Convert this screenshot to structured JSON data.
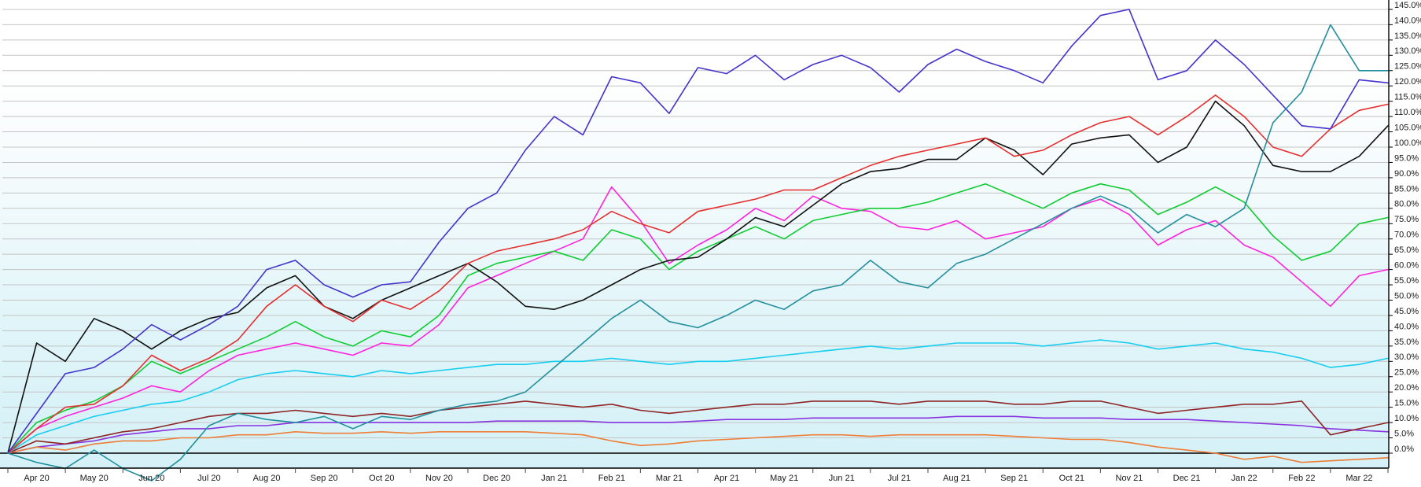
{
  "chart_data": {
    "type": "line",
    "title": "",
    "xlabel": "",
    "ylabel": "",
    "legend": "none",
    "grid": "horizontal",
    "y_axis": {
      "side": "right",
      "min": -5,
      "max": 147,
      "tick_interval": 5,
      "tick_labels": [
        "0.0%",
        "5.0%",
        "10.0%",
        "15.0%",
        "20.0%",
        "25.0%",
        "30.0%",
        "35.0%",
        "40.0%",
        "45.0%",
        "50.0%",
        "55.0%",
        "60.0%",
        "65.0%",
        "70.0%",
        "75.0%",
        "80.0%",
        "85.0%",
        "90.0%",
        "95.0%",
        "100.0%",
        "105.0%",
        "110.0%",
        "115.0%",
        "120.0%",
        "125.0%",
        "130.0%",
        "135.0%",
        "140.0%",
        "145.0%"
      ],
      "tick_values": [
        0,
        5,
        10,
        15,
        20,
        25,
        30,
        35,
        40,
        45,
        50,
        55,
        60,
        65,
        70,
        75,
        80,
        85,
        90,
        95,
        100,
        105,
        110,
        115,
        120,
        125,
        130,
        135,
        140,
        145
      ]
    },
    "x_axis": {
      "side": "bottom",
      "tick_labels": [
        "Apr 20",
        "May 20",
        "Jun 20",
        "Jul 20",
        "Aug 20",
        "Sep 20",
        "Oct 20",
        "Nov 20",
        "Dec 20",
        "Jan 21",
        "Feb 21",
        "Mar 21",
        "Apr 21",
        "May 21",
        "Jun 21",
        "Jul 21",
        "Aug 21",
        "Sep 21",
        "Oct 21",
        "Nov 21",
        "Dec 21",
        "Jan 22",
        "Feb 22",
        "Mar 22"
      ]
    },
    "x_unit": "months_since_2020-04-01",
    "x": [
      0,
      0.5,
      1,
      1.5,
      2,
      2.5,
      3,
      3.5,
      4,
      4.5,
      5,
      5.5,
      6,
      6.5,
      7,
      7.5,
      8,
      8.5,
      9,
      9.5,
      10,
      10.5,
      11,
      11.5,
      12,
      12.5,
      13,
      13.5,
      14,
      14.5,
      15,
      15.5,
      16,
      16.5,
      17,
      17.5,
      18,
      18.5,
      19,
      19.5,
      20,
      20.5,
      21,
      21.5,
      22,
      22.5,
      23,
      23.5,
      24
    ],
    "series": [
      {
        "name": "violet",
        "color": "#8833e0",
        "values": [
          0,
          2,
          3,
          4,
          6,
          7,
          8,
          8,
          9,
          9,
          10,
          10,
          10,
          10,
          10,
          10,
          10,
          10.5,
          10.5,
          10.5,
          10.5,
          10,
          10,
          10,
          10.5,
          11,
          11,
          11,
          11.5,
          11.5,
          11.5,
          11.5,
          11.5,
          12,
          12,
          12,
          11.5,
          11.5,
          11.5,
          11,
          11,
          11,
          10.5,
          10,
          9.5,
          9,
          8,
          7.5,
          7
        ]
      },
      {
        "name": "orange",
        "color": "#ef7d35",
        "values": [
          0,
          2,
          1,
          3,
          4,
          4,
          5,
          5,
          6,
          6,
          7,
          6.5,
          6.5,
          7,
          6.5,
          7,
          7,
          7,
          7,
          6.5,
          6,
          4,
          2.5,
          3,
          4,
          4.5,
          5,
          5.5,
          6,
          6,
          5.5,
          6,
          6,
          6,
          6,
          5.5,
          5,
          4.5,
          4.5,
          3.5,
          2,
          1,
          0,
          -2,
          -1,
          -3,
          -2.5,
          -2,
          -1.5
        ]
      },
      {
        "name": "maroon",
        "color": "#8e2425",
        "values": [
          0,
          4,
          3,
          5,
          7,
          8,
          10,
          12,
          13,
          13,
          14,
          13,
          12,
          13,
          12,
          14,
          15,
          16,
          17,
          16,
          15,
          16,
          14,
          13,
          14,
          15,
          16,
          16,
          17,
          17,
          17,
          16,
          17,
          17,
          17,
          16,
          16,
          17,
          17,
          15,
          13,
          14,
          15,
          16,
          16,
          17,
          6,
          8,
          10
        ]
      },
      {
        "name": "cyan",
        "color": "#18cdf0",
        "values": [
          0,
          6,
          9,
          12,
          14,
          16,
          17,
          20,
          24,
          26,
          27,
          26,
          25,
          27,
          26,
          27,
          28,
          29,
          29,
          30,
          30,
          31,
          30,
          29,
          30,
          30,
          31,
          32,
          33,
          34,
          35,
          34,
          35,
          36,
          36,
          36,
          35,
          36,
          37,
          36,
          34,
          35,
          36,
          34,
          33,
          31,
          28,
          29,
          31
        ]
      },
      {
        "name": "magenta",
        "color": "#ff22dd",
        "values": [
          0,
          8,
          12,
          15,
          18,
          22,
          20,
          27,
          32,
          34,
          36,
          34,
          32,
          36,
          35,
          42,
          54,
          58,
          62,
          66,
          70,
          87,
          76,
          62,
          68,
          73,
          80,
          76,
          84,
          80,
          79,
          74,
          73,
          76,
          70,
          72,
          74,
          80,
          83,
          78,
          68,
          73,
          76,
          68,
          64,
          56,
          48,
          58,
          60
        ]
      },
      {
        "name": "green",
        "color": "#10cc33",
        "values": [
          0,
          10,
          14,
          17,
          22,
          30,
          26,
          30,
          34,
          38,
          43,
          38,
          35,
          40,
          38,
          45,
          58,
          62,
          64,
          66,
          63,
          73,
          70,
          60,
          66,
          70,
          74,
          70,
          76,
          78,
          80,
          80,
          82,
          85,
          88,
          84,
          80,
          85,
          88,
          86,
          78,
          82,
          87,
          82,
          71,
          63,
          66,
          75,
          77
        ]
      },
      {
        "name": "black",
        "color": "#111111",
        "values": [
          0,
          36,
          30,
          44,
          40,
          34,
          40,
          44,
          46,
          54,
          58,
          48,
          44,
          50,
          54,
          58,
          62,
          56,
          48,
          47,
          50,
          55,
          60,
          63,
          64,
          70,
          77,
          74,
          81,
          88,
          92,
          93,
          96,
          96,
          103,
          99,
          91,
          101,
          103,
          104,
          95,
          100,
          115,
          107,
          94,
          92,
          92,
          97,
          107
        ]
      },
      {
        "name": "red",
        "color": "#e62e2e",
        "values": [
          0,
          8,
          15,
          16,
          22,
          32,
          27,
          31,
          37,
          48,
          55,
          48,
          43,
          50,
          47,
          53,
          62,
          66,
          68,
          70,
          73,
          79,
          75,
          72,
          79,
          81,
          83,
          86,
          86,
          90,
          94,
          97,
          99,
          101,
          103,
          97,
          99,
          104,
          108,
          110,
          104,
          110,
          117,
          110,
          100,
          97,
          106,
          112,
          114
        ]
      },
      {
        "name": "indigo",
        "color": "#4433cc",
        "values": [
          0,
          13,
          26,
          28,
          34,
          42,
          37,
          42,
          48,
          60,
          63,
          55,
          51,
          55,
          56,
          69,
          80,
          85,
          99,
          110,
          104,
          123,
          121,
          111,
          126,
          124,
          130,
          122,
          127,
          130,
          126,
          118,
          127,
          132,
          128,
          125,
          121,
          133,
          143,
          145,
          122,
          125,
          135,
          127,
          117,
          107,
          106,
          122,
          121
        ]
      },
      {
        "name": "teal",
        "color": "#238f9d",
        "values": [
          0,
          -3,
          -5,
          1,
          -5,
          -9,
          -2,
          9,
          13,
          11,
          10,
          12,
          8,
          12,
          11,
          14,
          16,
          17,
          20,
          28,
          36,
          44,
          50,
          43,
          41,
          45,
          50,
          47,
          53,
          55,
          63,
          56,
          54,
          62,
          65,
          70,
          75,
          80,
          84,
          80,
          72,
          78,
          74,
          80,
          108,
          118,
          140,
          125,
          125
        ]
      }
    ]
  },
  "colors": {
    "plot_bg_top": "#ffffff",
    "plot_bg_bottom": "#d5f1f7",
    "gridline": "#c4c4c4",
    "axis": "#000000",
    "tick_text": "#1a1a1a"
  }
}
